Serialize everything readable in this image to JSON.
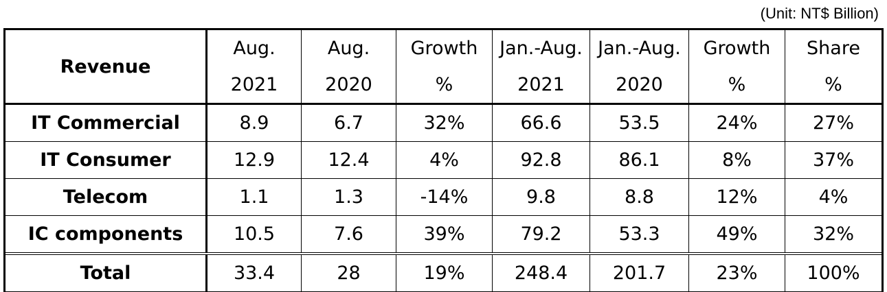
{
  "unit_note": "(Unit: NT$ Billion)",
  "columns": [
    {
      "line1": "Revenue",
      "line2": ""
    },
    {
      "line1": "Aug.",
      "line2": "2021"
    },
    {
      "line1": "Aug.",
      "line2": "2020"
    },
    {
      "line1": "Growth",
      "line2": "%"
    },
    {
      "line1": "Jan.-Aug.",
      "line2": "2021"
    },
    {
      "line1": "Jan.-Aug.",
      "line2": "2020"
    },
    {
      "line1": "Growth",
      "line2": "%"
    },
    {
      "line1": "Share",
      "line2": "%"
    }
  ],
  "rows": [
    {
      "label": "IT Commercial",
      "cells": [
        "8.9",
        "6.7",
        "32%",
        "66.6",
        "53.5",
        "24%",
        "27%"
      ]
    },
    {
      "label": "IT Consumer",
      "cells": [
        "12.9",
        "12.4",
        "4%",
        "92.8",
        "86.1",
        "8%",
        "37%"
      ]
    },
    {
      "label": "Telecom",
      "cells": [
        "1.1",
        "1.3",
        "-14%",
        "9.8",
        "8.8",
        "12%",
        "4%"
      ]
    },
    {
      "label": "IC components",
      "cells": [
        "10.5",
        "7.6",
        "39%",
        "79.2",
        "53.3",
        "49%",
        "32%"
      ]
    },
    {
      "label": "Total",
      "cells": [
        "33.4",
        "28",
        "19%",
        "248.4",
        "201.7",
        "23%",
        "100%"
      ]
    }
  ]
}
